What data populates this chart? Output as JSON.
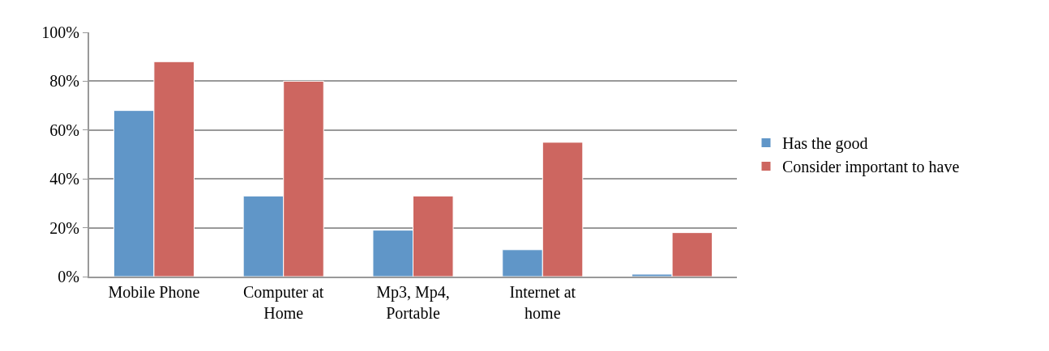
{
  "chart_data": {
    "type": "bar",
    "categories": [
      "Mobile Phone",
      "Computer at Home",
      "Mp3, Mp4, Portable",
      "Internet at home",
      null
    ],
    "series": [
      {
        "name": "Has the good",
        "color": "#6096c8",
        "values": [
          68,
          33,
          19,
          11,
          1
        ]
      },
      {
        "name": "Consider important to have",
        "color": "#cd6660",
        "values": [
          88,
          80,
          33,
          55,
          18
        ]
      }
    ],
    "ylim": [
      0,
      100
    ],
    "yticks": [
      {
        "value": 0,
        "label": "0%"
      },
      {
        "value": 20,
        "label": "20%"
      },
      {
        "value": 40,
        "label": "40%"
      },
      {
        "value": 60,
        "label": "60%"
      },
      {
        "value": 80,
        "label": "80%"
      },
      {
        "value": 100,
        "label": "100%"
      }
    ],
    "grid": "y",
    "legend": "right"
  }
}
